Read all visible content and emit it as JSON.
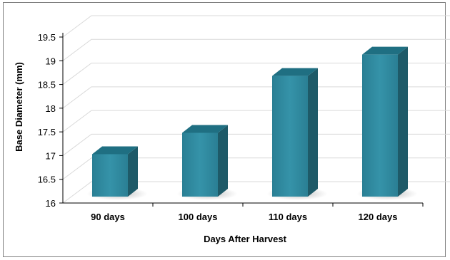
{
  "chart_data": {
    "type": "bar",
    "categories": [
      "90 days",
      "100 days",
      "110 days",
      "120 days"
    ],
    "values": [
      17.15,
      17.6,
      18.8,
      19.25
    ],
    "xlabel": "Days After Harvest",
    "ylabel": "Base Diameter (mm)",
    "ylim": [
      16,
      19.5
    ],
    "yticks": [
      16,
      16.5,
      17,
      17.5,
      18,
      18.5,
      19,
      19.5
    ],
    "grid": true,
    "style": "3d-column",
    "colors": {
      "bar_front": "#2f8aa0",
      "bar_side": "#1e5a68",
      "bar_top": "#1f6f82",
      "grid": "#d9d9d9"
    }
  }
}
